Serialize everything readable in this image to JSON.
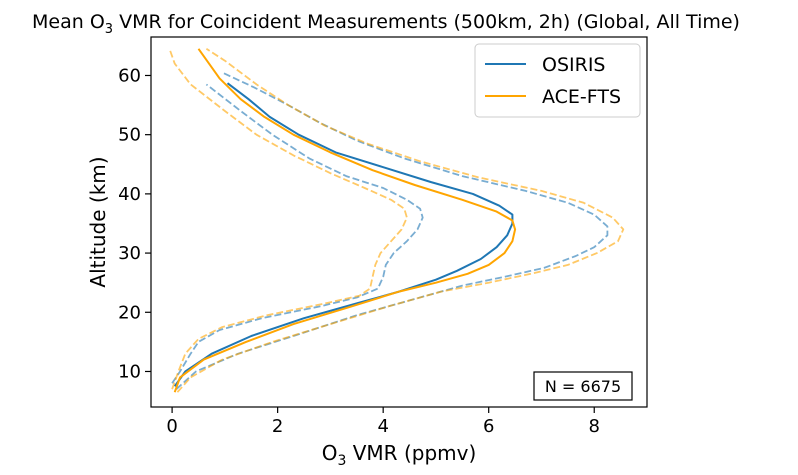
{
  "chart_data": {
    "type": "line",
    "title_parts": {
      "pre": "Mean O",
      "sub": "3",
      "post": " VMR for Coincident Measurements (500km, 2h) (Global, All Time)"
    },
    "xlabel_parts": {
      "pre": "O",
      "sub": "3",
      "post": " VMR (ppmv)"
    },
    "ylabel": "Altitude (km)",
    "xlim": [
      -0.4,
      9.0
    ],
    "ylim": [
      4,
      66.5
    ],
    "xticks": [
      0,
      2,
      4,
      6,
      8
    ],
    "yticks": [
      10,
      20,
      30,
      40,
      50,
      60
    ],
    "grid": false,
    "legend_position": "top-right",
    "annotation": "N = 6675",
    "colors": {
      "OSIRIS": "#1f77b4",
      "ACE-FTS": "#ffa500"
    },
    "series": [
      {
        "name": "OSIRIS",
        "style": "solid",
        "color": "#1f77b4",
        "points": [
          [
            0.05,
            7.5
          ],
          [
            0.25,
            10
          ],
          [
            0.75,
            13
          ],
          [
            1.5,
            16
          ],
          [
            2.5,
            19
          ],
          [
            3.5,
            21.5
          ],
          [
            4.3,
            23.5
          ],
          [
            5,
            25.5
          ],
          [
            5.4,
            27
          ],
          [
            5.85,
            29
          ],
          [
            6.15,
            31
          ],
          [
            6.35,
            33
          ],
          [
            6.45,
            35
          ],
          [
            6.45,
            36.5
          ],
          [
            6.2,
            38
          ],
          [
            5.7,
            40
          ],
          [
            4.9,
            42
          ],
          [
            4.0,
            44.5
          ],
          [
            3.1,
            47
          ],
          [
            2.4,
            50
          ],
          [
            1.85,
            53
          ],
          [
            1.45,
            56
          ],
          [
            1.05,
            58.7
          ]
        ]
      },
      {
        "name": "",
        "style": "dashed",
        "color": "#1f77b4",
        "points": [
          [
            0.0,
            8
          ],
          [
            0.15,
            10
          ],
          [
            0.35,
            13
          ],
          [
            0.5,
            15
          ],
          [
            0.9,
            17
          ],
          [
            1.7,
            19
          ],
          [
            2.8,
            21
          ],
          [
            3.5,
            22.5
          ],
          [
            3.9,
            24
          ],
          [
            4.0,
            26
          ],
          [
            4.05,
            28
          ],
          [
            4.2,
            30
          ],
          [
            4.45,
            32
          ],
          [
            4.65,
            34
          ],
          [
            4.75,
            36
          ],
          [
            4.7,
            37.5
          ],
          [
            4.45,
            39
          ],
          [
            4.0,
            41
          ],
          [
            3.3,
            43
          ],
          [
            2.6,
            46
          ],
          [
            1.9,
            50
          ],
          [
            1.3,
            54
          ],
          [
            0.65,
            58.5
          ]
        ]
      },
      {
        "name": "",
        "style": "dashed",
        "color": "#1f77b4",
        "points": [
          [
            0.08,
            7
          ],
          [
            0.45,
            10
          ],
          [
            1.25,
            13
          ],
          [
            2.3,
            16
          ],
          [
            3.5,
            19.5
          ],
          [
            4.5,
            22
          ],
          [
            5.5,
            24.5
          ],
          [
            6.3,
            26
          ],
          [
            7.05,
            27.5
          ],
          [
            7.65,
            29.5
          ],
          [
            8.0,
            31
          ],
          [
            8.25,
            33
          ],
          [
            8.25,
            34.5
          ],
          [
            8.0,
            36.5
          ],
          [
            7.5,
            38.5
          ],
          [
            6.7,
            40.5
          ],
          [
            5.5,
            43
          ],
          [
            4.4,
            46
          ],
          [
            3.5,
            49
          ],
          [
            2.8,
            52
          ],
          [
            2.2,
            55
          ],
          [
            1.55,
            58
          ],
          [
            0.95,
            60.5
          ]
        ]
      },
      {
        "name": "ACE-FTS",
        "style": "solid",
        "color": "#ffa500",
        "points": [
          [
            0.05,
            6.5
          ],
          [
            0.15,
            9
          ],
          [
            0.6,
            12
          ],
          [
            1.4,
            15
          ],
          [
            2.3,
            18
          ],
          [
            3.4,
            21
          ],
          [
            4.3,
            23.5
          ],
          [
            5.0,
            25
          ],
          [
            5.6,
            26.5
          ],
          [
            6.0,
            28
          ],
          [
            6.3,
            30
          ],
          [
            6.45,
            32
          ],
          [
            6.5,
            34
          ],
          [
            6.45,
            35.5
          ],
          [
            6.15,
            37
          ],
          [
            5.5,
            39
          ],
          [
            4.6,
            41.5
          ],
          [
            3.8,
            44
          ],
          [
            3.0,
            47
          ],
          [
            2.3,
            50
          ],
          [
            1.75,
            53
          ],
          [
            1.3,
            56
          ],
          [
            0.9,
            59.5
          ],
          [
            0.5,
            64.5
          ]
        ]
      },
      {
        "name": "",
        "style": "dashed",
        "color": "#ffa500",
        "points": [
          [
            0.0,
            7
          ],
          [
            0.12,
            10
          ],
          [
            0.25,
            13
          ],
          [
            0.5,
            15.5
          ],
          [
            0.95,
            17.5
          ],
          [
            1.8,
            19.5
          ],
          [
            2.9,
            21.5
          ],
          [
            3.55,
            22.8
          ],
          [
            3.75,
            24
          ],
          [
            3.8,
            26
          ],
          [
            3.85,
            28
          ],
          [
            3.95,
            30
          ],
          [
            4.15,
            32
          ],
          [
            4.35,
            34
          ],
          [
            4.45,
            36
          ],
          [
            4.4,
            37.5
          ],
          [
            4.15,
            39
          ],
          [
            3.65,
            41
          ],
          [
            3.0,
            43.5
          ],
          [
            2.3,
            46.5
          ],
          [
            1.6,
            50
          ],
          [
            1.0,
            54
          ],
          [
            0.35,
            58.5
          ],
          [
            0.05,
            62
          ],
          [
            -0.05,
            64.5
          ]
        ]
      },
      {
        "name": "",
        "style": "dashed",
        "color": "#ffa500",
        "points": [
          [
            0.1,
            6.5
          ],
          [
            0.35,
            9
          ],
          [
            0.95,
            12
          ],
          [
            1.9,
            15
          ],
          [
            3.0,
            18
          ],
          [
            4.1,
            21
          ],
          [
            5.1,
            23.5
          ],
          [
            6.0,
            25
          ],
          [
            6.8,
            26.5
          ],
          [
            7.5,
            28
          ],
          [
            8.05,
            30
          ],
          [
            8.45,
            32
          ],
          [
            8.55,
            34
          ],
          [
            8.35,
            36
          ],
          [
            7.8,
            38.5
          ],
          [
            7.0,
            40.5
          ],
          [
            5.8,
            42.8
          ],
          [
            4.7,
            45.5
          ],
          [
            3.7,
            48.5
          ],
          [
            2.9,
            51.5
          ],
          [
            2.2,
            55
          ],
          [
            1.6,
            58.5
          ],
          [
            1.0,
            62.5
          ],
          [
            0.65,
            64.5
          ]
        ]
      }
    ]
  }
}
